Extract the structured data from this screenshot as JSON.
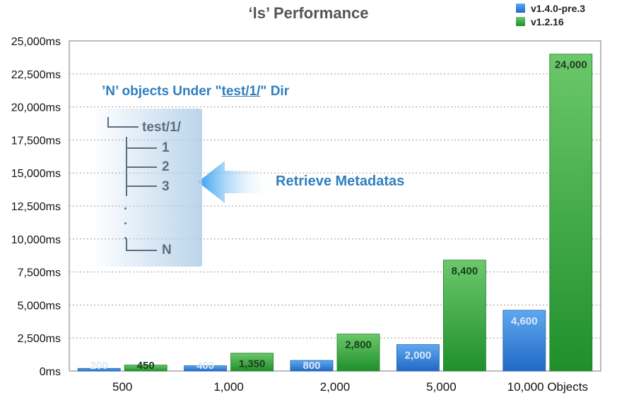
{
  "chart_data": {
    "type": "bar",
    "title": "‘ls’ Performance",
    "categories": [
      "500",
      "1,000",
      "2,000",
      "5,000",
      "10,000 Objects"
    ],
    "series": [
      {
        "name": "v1.4.0-pre.3",
        "color": "#2f7fd6",
        "values": [
          200,
          400,
          800,
          2000,
          4600
        ],
        "labels": [
          "200",
          "400",
          "800",
          "2,000",
          "4,600"
        ]
      },
      {
        "name": "v1.2.16",
        "color": "#2ca236",
        "values": [
          450,
          1350,
          2800,
          8400,
          24000
        ],
        "labels": [
          "450",
          "1,350",
          "2,800",
          "8,400",
          "24,000"
        ]
      }
    ],
    "ylim": [
      0,
      25000
    ],
    "yticks": [
      0,
      2500,
      5000,
      7500,
      10000,
      12500,
      15000,
      17500,
      20000,
      22500,
      25000
    ],
    "ytick_labels": [
      "0ms",
      "2,500ms",
      "5,000ms",
      "7,500ms",
      "10,000ms",
      "12,500ms",
      "15,000ms",
      "17,500ms",
      "20,000ms",
      "22,500ms",
      "25,000ms"
    ],
    "grid": "horizontal dotted",
    "legend": "top-right",
    "xlabel": "",
    "ylabel": ""
  },
  "annotation": {
    "heading_prefix": "’N’ objects Under \"",
    "heading_path": "test/1/",
    "heading_suffix": "\" Dir",
    "tree_root": "test/1/",
    "tree_items": [
      "1",
      "2",
      "3"
    ],
    "tree_ellipsis": ".",
    "tree_last": "N",
    "arrow_text": "Retrieve Metadatas"
  }
}
